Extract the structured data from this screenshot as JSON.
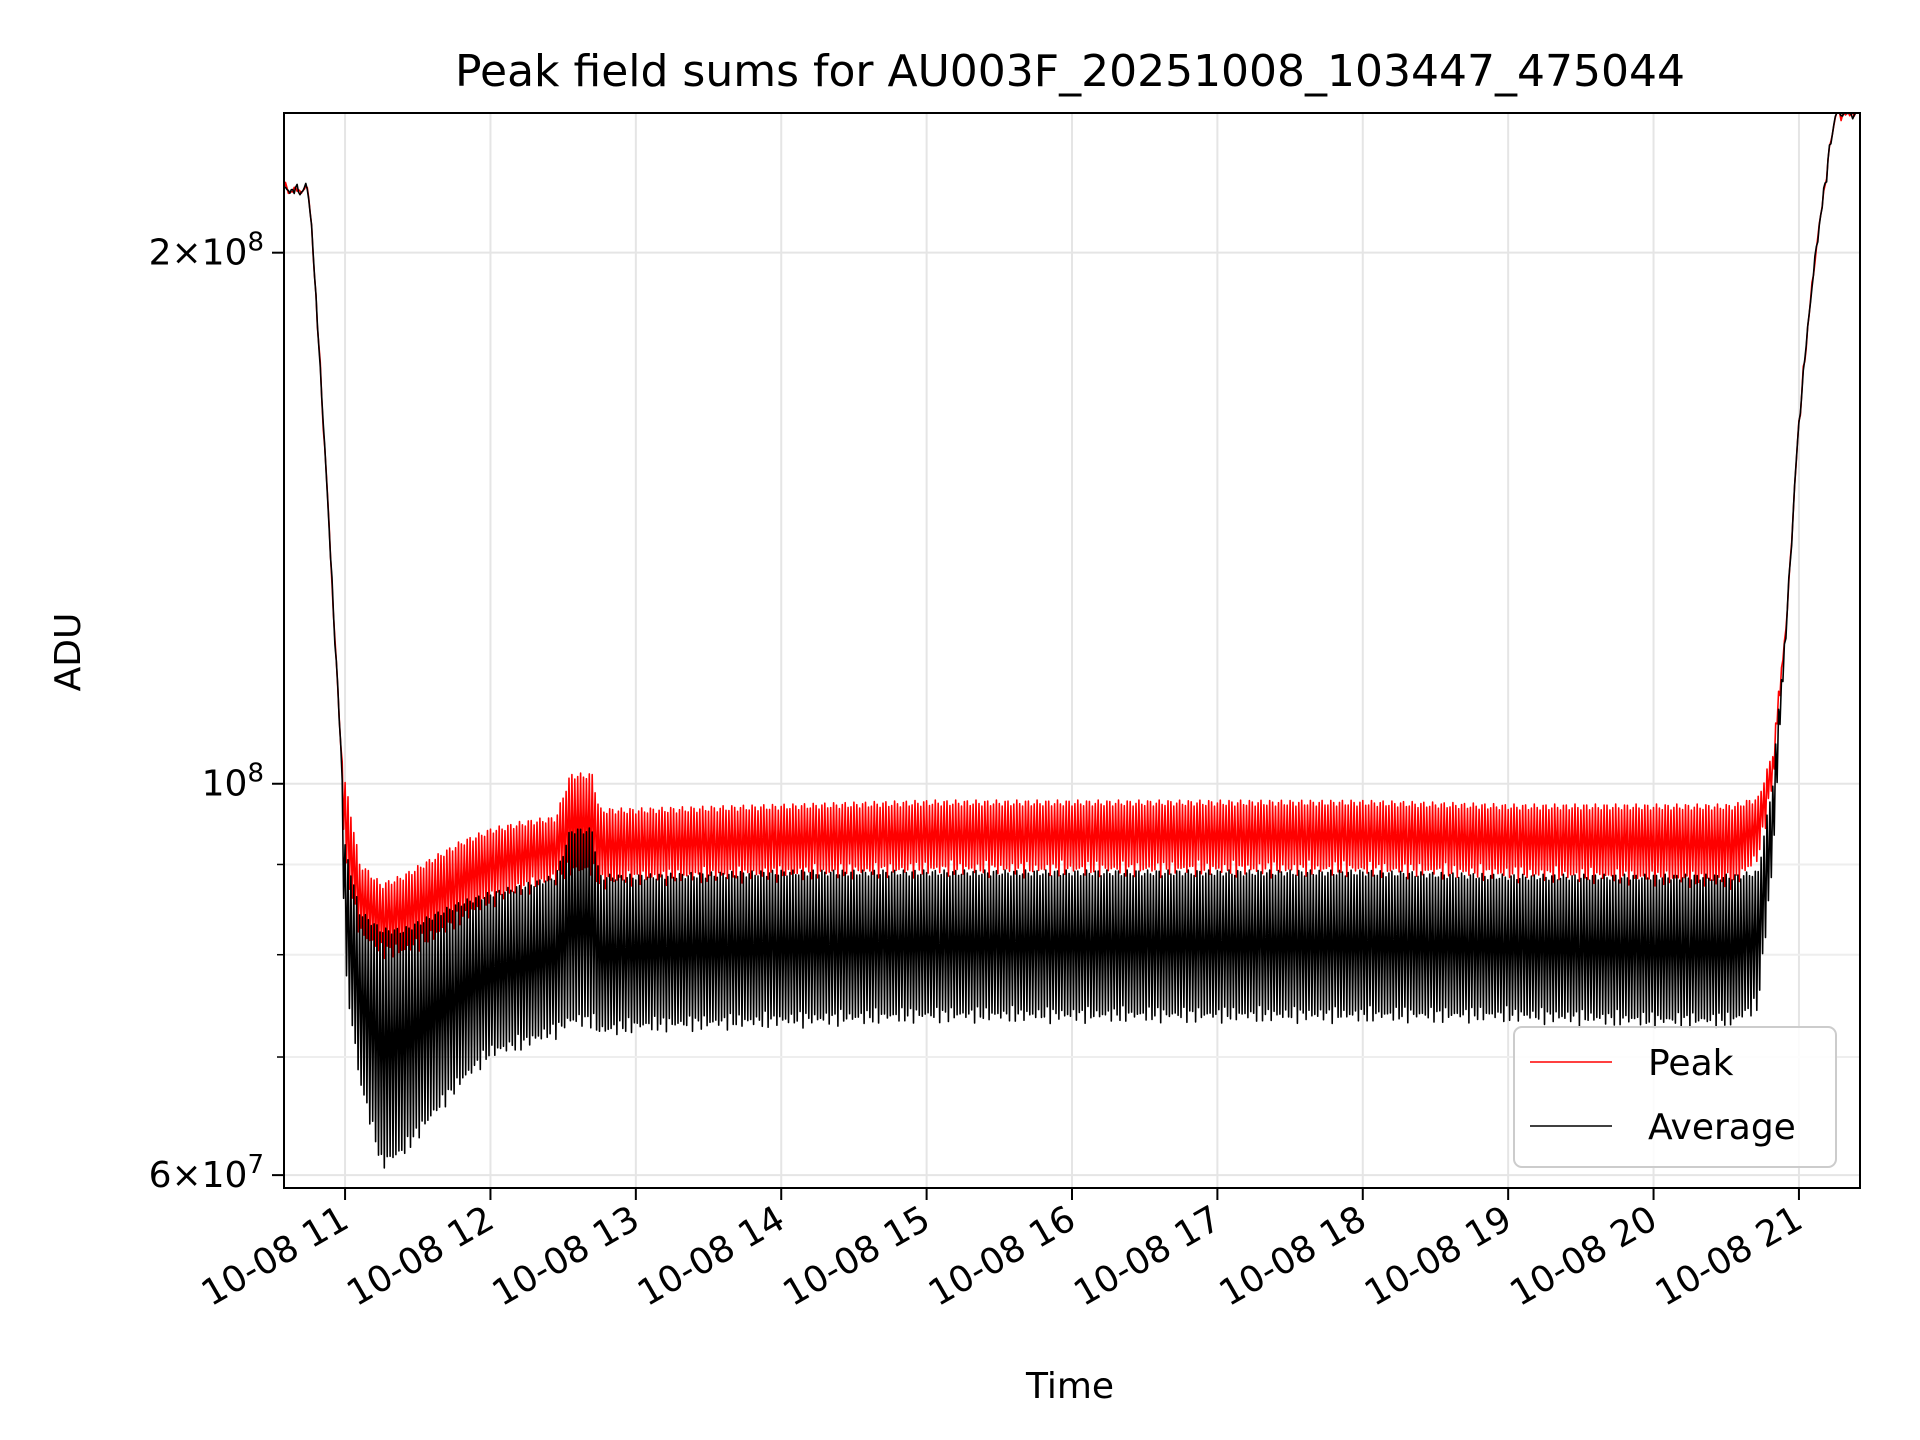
{
  "chart_data": {
    "type": "line",
    "title": "Peak field sums for AU003F_20251008_103447_475044",
    "xlabel": "Time",
    "ylabel": "ADU",
    "y_scale": "log",
    "ylim": [
      59000000,
      240000000
    ],
    "xlim_hours": [
      10.58,
      21.42
    ],
    "grid": true,
    "legend_position": "lower right",
    "x_ticks": [
      {
        "value": 11,
        "label": "10-08 11"
      },
      {
        "value": 12,
        "label": "10-08 12"
      },
      {
        "value": 13,
        "label": "10-08 13"
      },
      {
        "value": 14,
        "label": "10-08 14"
      },
      {
        "value": 15,
        "label": "10-08 15"
      },
      {
        "value": 16,
        "label": "10-08 16"
      },
      {
        "value": 17,
        "label": "10-08 17"
      },
      {
        "value": 18,
        "label": "10-08 18"
      },
      {
        "value": 19,
        "label": "10-08 19"
      },
      {
        "value": 20,
        "label": "10-08 20"
      },
      {
        "value": 21,
        "label": "10-08 21"
      }
    ],
    "y_major_ticks": [
      {
        "value": 60000000,
        "mant": "6",
        "exp": "7"
      },
      {
        "value": 100000000,
        "mant": "",
        "exp": "8"
      },
      {
        "value": 200000000,
        "mant": "2",
        "exp": "8"
      }
    ],
    "y_minor_ticks": [
      70000000,
      80000000,
      90000000
    ],
    "series": [
      {
        "name": "Peak",
        "color": "#ff0000",
        "envelope_hours": [
          10.58,
          10.75,
          10.85,
          10.92,
          10.97,
          11.0,
          11.1,
          11.25,
          11.4,
          11.6,
          11.8,
          12.0,
          12.25,
          12.45,
          12.55,
          12.7,
          12.75,
          13.0,
          14.0,
          15.0,
          16.0,
          17.0,
          18.0,
          19.0,
          20.0,
          20.55,
          20.72,
          20.82,
          20.92,
          21.0,
          21.1,
          21.2,
          21.25,
          21.42
        ],
        "envelope_high": [
          217000000,
          217000000,
          160000000,
          125000000,
          105000000,
          100000000,
          90000000,
          87500000,
          88500000,
          90500000,
          92500000,
          94000000,
          95000000,
          95500000,
          101000000,
          101000000,
          96500000,
          96500000,
          97000000,
          97500000,
          97500000,
          97500000,
          97500000,
          97000000,
          97000000,
          97000000,
          98000000,
          104000000,
          125000000,
          160000000,
          195000000,
          225000000,
          240000000,
          240000000
        ],
        "envelope_low": [
          217000000,
          217000000,
          160000000,
          125000000,
          105000000,
          90000000,
          82500000,
          80500000,
          80500000,
          82000000,
          84000000,
          86000000,
          87500000,
          88500000,
          89500000,
          89500000,
          88000000,
          88500000,
          89000000,
          89500000,
          89500000,
          89500000,
          89500000,
          89000000,
          88500000,
          88000000,
          91000000,
          100000000,
          125000000,
          160000000,
          195000000,
          225000000,
          240000000,
          240000000
        ]
      },
      {
        "name": "Average",
        "color": "#000000",
        "envelope_hours": [
          10.58,
          10.75,
          10.85,
          10.92,
          10.97,
          11.0,
          11.1,
          11.25,
          11.4,
          11.6,
          11.8,
          12.0,
          12.25,
          12.45,
          12.55,
          12.7,
          12.75,
          13.0,
          14.0,
          15.0,
          16.0,
          17.0,
          18.0,
          19.0,
          20.0,
          20.55,
          20.72,
          20.82,
          20.92,
          21.0,
          21.1,
          21.2,
          21.25,
          21.42
        ],
        "envelope_high": [
          217000000,
          217000000,
          160000000,
          125000000,
          105000000,
          92000000,
          84500000,
          82500000,
          82500000,
          84000000,
          85500000,
          86500000,
          87500000,
          88500000,
          94000000,
          94000000,
          88500000,
          88500000,
          89000000,
          89000000,
          89000000,
          89000000,
          89000000,
          88500000,
          88500000,
          88500000,
          89000000,
          100000000,
          125000000,
          160000000,
          195000000,
          225000000,
          240000000,
          240000000
        ],
        "envelope_low": [
          217000000,
          217000000,
          160000000,
          125000000,
          105000000,
          78000000,
          68000000,
          61000000,
          62000000,
          65000000,
          68000000,
          70500000,
          71500000,
          72500000,
          73500000,
          73500000,
          72500000,
          73000000,
          73500000,
          74000000,
          74000000,
          74000000,
          74000000,
          74000000,
          73500000,
          73500000,
          75000000,
          90000000,
          125000000,
          160000000,
          195000000,
          225000000,
          240000000,
          240000000
        ]
      }
    ]
  }
}
